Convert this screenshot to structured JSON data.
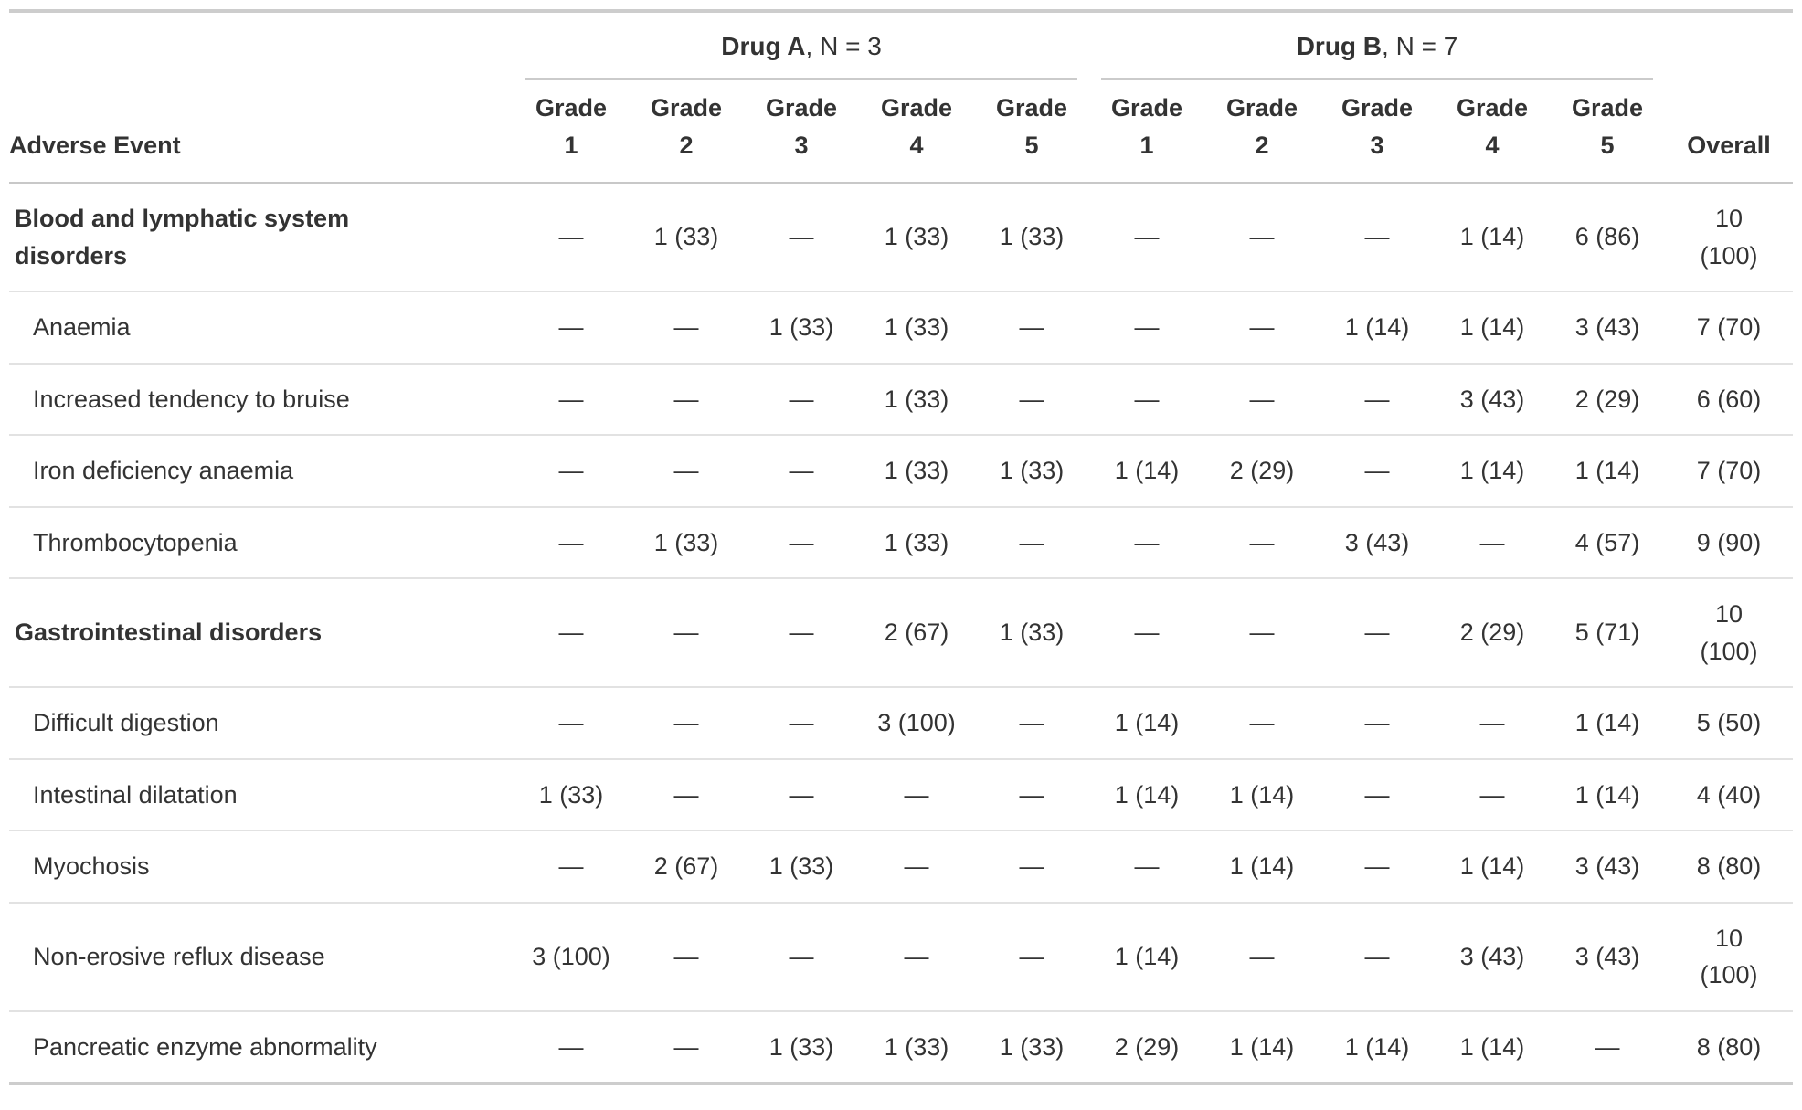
{
  "chart_data": {
    "type": "table",
    "header": {
      "stub": "Adverse Event",
      "spanners": [
        {
          "label": "Drug A",
          "suffix": ", N = 3"
        },
        {
          "label": "Drug B",
          "suffix": ", N = 7"
        }
      ],
      "grade_cols": [
        {
          "spanner": "Drug A",
          "word": "Grade",
          "num": "1"
        },
        {
          "spanner": "Drug A",
          "word": "Grade",
          "num": "2"
        },
        {
          "spanner": "Drug A",
          "word": "Grade",
          "num": "3"
        },
        {
          "spanner": "Drug A",
          "word": "Grade",
          "num": "4"
        },
        {
          "spanner": "Drug A",
          "word": "Grade",
          "num": "5"
        },
        {
          "spanner": "Drug B",
          "word": "Grade",
          "num": "1"
        },
        {
          "spanner": "Drug B",
          "word": "Grade",
          "num": "2"
        },
        {
          "spanner": "Drug B",
          "word": "Grade",
          "num": "3"
        },
        {
          "spanner": "Drug B",
          "word": "Grade",
          "num": "4"
        },
        {
          "spanner": "Drug B",
          "word": "Grade",
          "num": "5"
        }
      ],
      "overall": "Overall"
    },
    "rows": [
      {
        "label": "Blood and lymphatic system disorders",
        "level": "group",
        "values": [
          "—",
          "1 (33)",
          "—",
          "1 (33)",
          "1 (33)",
          "—",
          "—",
          "—",
          "1 (14)",
          "6 (86)"
        ],
        "overall": "10 (100)"
      },
      {
        "label": "Anaemia",
        "level": "sub",
        "values": [
          "—",
          "—",
          "1 (33)",
          "1 (33)",
          "—",
          "—",
          "—",
          "1 (14)",
          "1 (14)",
          "3 (43)"
        ],
        "overall": "7 (70)"
      },
      {
        "label": "Increased tendency to bruise",
        "level": "sub",
        "values": [
          "—",
          "—",
          "—",
          "1 (33)",
          "—",
          "—",
          "—",
          "—",
          "3 (43)",
          "2 (29)"
        ],
        "overall": "6 (60)"
      },
      {
        "label": "Iron deficiency anaemia",
        "level": "sub",
        "values": [
          "—",
          "—",
          "—",
          "1 (33)",
          "1 (33)",
          "1 (14)",
          "2 (29)",
          "—",
          "1 (14)",
          "1 (14)"
        ],
        "overall": "7 (70)"
      },
      {
        "label": "Thrombocytopenia",
        "level": "sub",
        "values": [
          "—",
          "1 (33)",
          "—",
          "1 (33)",
          "—",
          "—",
          "—",
          "3 (43)",
          "—",
          "4 (57)"
        ],
        "overall": "9 (90)"
      },
      {
        "label": "Gastrointestinal disorders",
        "level": "group",
        "values": [
          "—",
          "—",
          "—",
          "2 (67)",
          "1 (33)",
          "—",
          "—",
          "—",
          "2 (29)",
          "5 (71)"
        ],
        "overall": "10 (100)"
      },
      {
        "label": "Difficult digestion",
        "level": "sub",
        "values": [
          "—",
          "—",
          "—",
          "3 (100)",
          "—",
          "1 (14)",
          "—",
          "—",
          "—",
          "1 (14)"
        ],
        "overall": "5 (50)"
      },
      {
        "label": "Intestinal dilatation",
        "level": "sub",
        "values": [
          "1 (33)",
          "—",
          "—",
          "—",
          "—",
          "1 (14)",
          "1 (14)",
          "—",
          "—",
          "1 (14)"
        ],
        "overall": "4 (40)"
      },
      {
        "label": "Myochosis",
        "level": "sub",
        "values": [
          "—",
          "2 (67)",
          "1 (33)",
          "—",
          "—",
          "—",
          "1 (14)",
          "—",
          "1 (14)",
          "3 (43)"
        ],
        "overall": "8 (80)"
      },
      {
        "label": "Non-erosive reflux disease",
        "level": "sub",
        "values": [
          "3 (100)",
          "—",
          "—",
          "—",
          "—",
          "1 (14)",
          "—",
          "—",
          "3 (43)",
          "3 (43)"
        ],
        "overall": "10 (100)"
      },
      {
        "label": "Pancreatic enzyme abnormality",
        "level": "sub",
        "values": [
          "—",
          "—",
          "1 (33)",
          "1 (33)",
          "1 (33)",
          "2 (29)",
          "1 (14)",
          "1 (14)",
          "1 (14)",
          "—"
        ],
        "overall": "8 (80)"
      }
    ],
    "colors": {
      "text": "#333333",
      "table_border": "#cdcdcd",
      "spanner_rule": "#cbcbcb",
      "header_rule": "#c8c8c8",
      "row_rule": "#e2e2e2",
      "background": "#ffffff"
    }
  }
}
